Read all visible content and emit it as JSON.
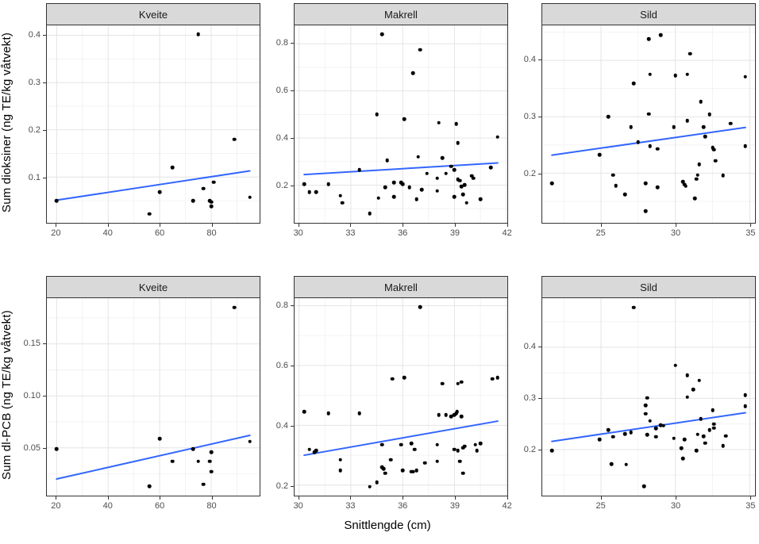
{
  "figure": {
    "xlabel": "Snittlengde (cm)",
    "row_ylabels": [
      "Sum dioksiner (ng TE/kg våtvekt)",
      "Sum dl-PCB (ng TE/kg våtvekt)"
    ],
    "facets": [
      "Kveite",
      "Makrell",
      "Sild"
    ],
    "colors": {
      "smooth_line": "#3366FF",
      "point": "#000000",
      "strip_bg": "#D9D9D9",
      "panel_border": "#333333",
      "grid_major": "#E4E4E4",
      "grid_minor": "#F0F0F0",
      "tick_label": "#4D4D4D"
    }
  },
  "chart_data": [
    {
      "type": "scatter",
      "facet": "Kveite",
      "response": "Sum dioksiner (ng TE/kg våtvekt)",
      "xlim": [
        16.2,
        98.8
      ],
      "ylim": [
        0.003,
        0.421
      ],
      "xticks": [
        20,
        40,
        60,
        80
      ],
      "xtick_labels": [
        "20",
        "40",
        "60",
        "80"
      ],
      "yticks": [
        0.1,
        0.2,
        0.3,
        0.4
      ],
      "ytick_labels": [
        "0.1",
        "0.2",
        "0.3",
        "0.4"
      ],
      "points": [
        [
          20,
          0.05
        ],
        [
          56,
          0.022
        ],
        [
          60,
          0.068
        ],
        [
          65,
          0.12
        ],
        [
          73,
          0.05
        ],
        [
          75,
          0.402
        ],
        [
          77,
          0.076
        ],
        [
          79.5,
          0.05
        ],
        [
          80,
          0.047
        ],
        [
          80,
          0.038
        ],
        [
          81,
          0.089
        ],
        [
          89,
          0.18
        ],
        [
          95,
          0.057
        ]
      ],
      "trend": {
        "x": [
          20,
          95
        ],
        "y": [
          0.051,
          0.113
        ]
      }
    },
    {
      "type": "scatter",
      "facet": "Makrell",
      "response": "Sum dioksiner (ng TE/kg våtvekt)",
      "xlim": [
        29.74,
        42.06
      ],
      "ylim": [
        0.04,
        0.878
      ],
      "xticks": [
        30,
        33,
        36,
        39,
        42
      ],
      "xtick_labels": [
        "30",
        "33",
        "36",
        "39",
        "42"
      ],
      "yticks": [
        0.2,
        0.4,
        0.6,
        0.8
      ],
      "ytick_labels": [
        "0.2",
        "0.4",
        "0.6",
        "0.8"
      ],
      "points": [
        [
          30.3,
          0.205
        ],
        [
          30.6,
          0.17
        ],
        [
          31.0,
          0.17
        ],
        [
          31.7,
          0.205
        ],
        [
          32.4,
          0.155
        ],
        [
          32.5,
          0.125
        ],
        [
          33.5,
          0.265
        ],
        [
          34.1,
          0.08
        ],
        [
          34.5,
          0.5
        ],
        [
          34.6,
          0.145
        ],
        [
          34.8,
          0.84
        ],
        [
          35.0,
          0.19
        ],
        [
          35.1,
          0.305
        ],
        [
          35.5,
          0.21
        ],
        [
          35.5,
          0.15
        ],
        [
          35.9,
          0.21
        ],
        [
          36.0,
          0.205
        ],
        [
          36.1,
          0.48
        ],
        [
          36.4,
          0.19
        ],
        [
          36.6,
          0.675
        ],
        [
          36.8,
          0.14
        ],
        [
          36.9,
          0.32
        ],
        [
          37.0,
          0.775
        ],
        [
          37.1,
          0.18
        ],
        [
          37.4,
          0.25
        ],
        [
          38.0,
          0.175
        ],
        [
          38.0,
          0.23
        ],
        [
          38.1,
          0.465
        ],
        [
          38.3,
          0.315
        ],
        [
          38.5,
          0.25
        ],
        [
          38.8,
          0.28
        ],
        [
          39.0,
          0.15
        ],
        [
          39.0,
          0.265
        ],
        [
          39.1,
          0.46
        ],
        [
          39.2,
          0.38
        ],
        [
          39.2,
          0.225
        ],
        [
          39.3,
          0.22
        ],
        [
          39.4,
          0.195
        ],
        [
          39.5,
          0.16
        ],
        [
          39.6,
          0.2
        ],
        [
          39.7,
          0.125
        ],
        [
          40.0,
          0.24
        ],
        [
          40.1,
          0.23
        ],
        [
          40.5,
          0.14
        ],
        [
          41.1,
          0.275
        ],
        [
          41.5,
          0.405
        ]
      ],
      "trend": {
        "x": [
          30.3,
          41.5
        ],
        "y": [
          0.245,
          0.294
        ]
      }
    },
    {
      "type": "scatter",
      "facet": "Sild",
      "response": "Sum dioksiner (ng TE/kg våtvekt)",
      "xlim": [
        21.05,
        35.35
      ],
      "ylim": [
        0.112,
        0.462
      ],
      "xticks": [
        25,
        30,
        35
      ],
      "xtick_labels": [
        "25",
        "30",
        "35"
      ],
      "yticks": [
        0.2,
        0.3,
        0.4
      ],
      "ytick_labels": [
        "0.2",
        "0.3",
        "0.4"
      ],
      "points": [
        [
          21.7,
          0.182
        ],
        [
          24.9,
          0.233
        ],
        [
          25.5,
          0.3
        ],
        [
          25.8,
          0.197
        ],
        [
          26.0,
          0.178
        ],
        [
          26.6,
          0.162
        ],
        [
          27.0,
          0.282
        ],
        [
          27.2,
          0.359
        ],
        [
          27.5,
          0.255
        ],
        [
          28.0,
          0.182
        ],
        [
          28.0,
          0.133
        ],
        [
          28.2,
          0.438
        ],
        [
          28.2,
          0.305
        ],
        [
          28.3,
          0.375
        ],
        [
          28.3,
          0.248
        ],
        [
          28.8,
          0.243
        ],
        [
          28.8,
          0.175
        ],
        [
          29.0,
          0.445
        ],
        [
          29.9,
          0.282
        ],
        [
          30.0,
          0.373
        ],
        [
          30.5,
          0.185
        ],
        [
          30.6,
          0.18
        ],
        [
          30.7,
          0.177
        ],
        [
          30.8,
          0.375
        ],
        [
          30.8,
          0.293
        ],
        [
          31.0,
          0.412
        ],
        [
          31.3,
          0.155
        ],
        [
          31.4,
          0.19
        ],
        [
          31.5,
          0.197
        ],
        [
          31.6,
          0.216
        ],
        [
          31.7,
          0.327
        ],
        [
          31.9,
          0.282
        ],
        [
          32.0,
          0.265
        ],
        [
          32.3,
          0.304
        ],
        [
          32.5,
          0.245
        ],
        [
          32.6,
          0.242
        ],
        [
          32.7,
          0.222
        ],
        [
          33.2,
          0.196
        ],
        [
          33.7,
          0.288
        ],
        [
          34.7,
          0.371
        ],
        [
          34.7,
          0.248
        ]
      ],
      "trend": {
        "x": [
          21.7,
          34.7
        ],
        "y": [
          0.232,
          0.281
        ]
      }
    },
    {
      "type": "scatter",
      "facet": "Kveite",
      "response": "Sum dl-PCB (ng TE/kg våtvekt)",
      "xlim": [
        16.2,
        98.8
      ],
      "ylim": [
        0.004,
        0.194
      ],
      "xticks": [
        20,
        40,
        60,
        80
      ],
      "xtick_labels": [
        "20",
        "40",
        "60",
        "80"
      ],
      "yticks": [
        0.05,
        0.1,
        0.15
      ],
      "ytick_labels": [
        "0.05",
        "0.10",
        "0.15"
      ],
      "points": [
        [
          20,
          0.049
        ],
        [
          56,
          0.013
        ],
        [
          60,
          0.059
        ],
        [
          65,
          0.037
        ],
        [
          73,
          0.049
        ],
        [
          75,
          0.037
        ],
        [
          77,
          0.015
        ],
        [
          79.5,
          0.037
        ],
        [
          80,
          0.046
        ],
        [
          80,
          0.027
        ],
        [
          89,
          0.185
        ],
        [
          95,
          0.056
        ]
      ],
      "trend": {
        "x": [
          20,
          95
        ],
        "y": [
          0.02,
          0.062
        ]
      }
    },
    {
      "type": "scatter",
      "facet": "Makrell",
      "response": "Sum dl-PCB (ng TE/kg våtvekt)",
      "xlim": [
        29.74,
        42.06
      ],
      "ylim": [
        0.165,
        0.825
      ],
      "xticks": [
        30,
        33,
        36,
        39,
        42
      ],
      "xtick_labels": [
        "30",
        "33",
        "36",
        "39",
        "42"
      ],
      "yticks": [
        0.2,
        0.4,
        0.6,
        0.8
      ],
      "ytick_labels": [
        "0.2",
        "0.4",
        "0.6",
        "0.8"
      ],
      "points": [
        [
          30.3,
          0.445
        ],
        [
          30.6,
          0.32
        ],
        [
          30.9,
          0.31
        ],
        [
          31.0,
          0.315
        ],
        [
          31.7,
          0.44
        ],
        [
          32.4,
          0.285
        ],
        [
          32.4,
          0.25
        ],
        [
          33.5,
          0.44
        ],
        [
          34.1,
          0.195
        ],
        [
          34.5,
          0.21
        ],
        [
          34.8,
          0.335
        ],
        [
          34.8,
          0.26
        ],
        [
          34.9,
          0.255
        ],
        [
          35.0,
          0.24
        ],
        [
          35.3,
          0.285
        ],
        [
          35.4,
          0.555
        ],
        [
          35.9,
          0.335
        ],
        [
          36.0,
          0.25
        ],
        [
          36.1,
          0.56
        ],
        [
          36.5,
          0.34
        ],
        [
          36.5,
          0.245
        ],
        [
          36.6,
          0.245
        ],
        [
          36.7,
          0.32
        ],
        [
          36.8,
          0.25
        ],
        [
          37.0,
          0.795
        ],
        [
          37.3,
          0.275
        ],
        [
          38.0,
          0.335
        ],
        [
          38.0,
          0.28
        ],
        [
          38.1,
          0.435
        ],
        [
          38.3,
          0.54
        ],
        [
          38.5,
          0.435
        ],
        [
          38.8,
          0.43
        ],
        [
          39.0,
          0.32
        ],
        [
          39.0,
          0.435
        ],
        [
          39.1,
          0.44
        ],
        [
          39.15,
          0.445
        ],
        [
          39.2,
          0.54
        ],
        [
          39.2,
          0.315
        ],
        [
          39.3,
          0.28
        ],
        [
          39.4,
          0.43
        ],
        [
          39.4,
          0.545
        ],
        [
          39.5,
          0.24
        ],
        [
          39.5,
          0.325
        ],
        [
          39.6,
          0.33
        ],
        [
          40.2,
          0.335
        ],
        [
          40.3,
          0.315
        ],
        [
          40.5,
          0.34
        ],
        [
          41.2,
          0.555
        ],
        [
          41.5,
          0.56
        ]
      ],
      "trend": {
        "x": [
          30.3,
          41.5
        ],
        "y": [
          0.3,
          0.414
        ]
      }
    },
    {
      "type": "scatter",
      "facet": "Sild",
      "response": "Sum dl-PCB (ng TE/kg våtvekt)",
      "xlim": [
        21.05,
        35.35
      ],
      "ylim": [
        0.11,
        0.496
      ],
      "xticks": [
        25,
        30,
        35
      ],
      "xtick_labels": [
        "25",
        "30",
        "35"
      ],
      "yticks": [
        0.2,
        0.3,
        0.4
      ],
      "ytick_labels": [
        "0.2",
        "0.3",
        "0.4"
      ],
      "points": [
        [
          21.7,
          0.198
        ],
        [
          24.9,
          0.22
        ],
        [
          25.5,
          0.238
        ],
        [
          25.7,
          0.172
        ],
        [
          25.8,
          0.225
        ],
        [
          26.6,
          0.231
        ],
        [
          26.7,
          0.171
        ],
        [
          27.0,
          0.234
        ],
        [
          27.2,
          0.478
        ],
        [
          27.9,
          0.128
        ],
        [
          28.0,
          0.286
        ],
        [
          28.0,
          0.27
        ],
        [
          28.1,
          0.301
        ],
        [
          28.1,
          0.229
        ],
        [
          28.3,
          0.256
        ],
        [
          28.7,
          0.241
        ],
        [
          28.7,
          0.225
        ],
        [
          29.0,
          0.248
        ],
        [
          29.2,
          0.247
        ],
        [
          29.9,
          0.222
        ],
        [
          30.0,
          0.365
        ],
        [
          30.4,
          0.203
        ],
        [
          30.5,
          0.183
        ],
        [
          30.6,
          0.22
        ],
        [
          30.8,
          0.345
        ],
        [
          30.8,
          0.303
        ],
        [
          31.2,
          0.317
        ],
        [
          31.4,
          0.198
        ],
        [
          31.5,
          0.23
        ],
        [
          31.6,
          0.335
        ],
        [
          31.7,
          0.26
        ],
        [
          31.9,
          0.226
        ],
        [
          32.0,
          0.213
        ],
        [
          32.3,
          0.238
        ],
        [
          32.5,
          0.277
        ],
        [
          32.6,
          0.25
        ],
        [
          32.6,
          0.242
        ],
        [
          33.2,
          0.207
        ],
        [
          33.4,
          0.227
        ],
        [
          34.7,
          0.307
        ],
        [
          34.7,
          0.285
        ]
      ],
      "trend": {
        "x": [
          21.7,
          34.7
        ],
        "y": [
          0.216,
          0.272
        ]
      }
    }
  ]
}
